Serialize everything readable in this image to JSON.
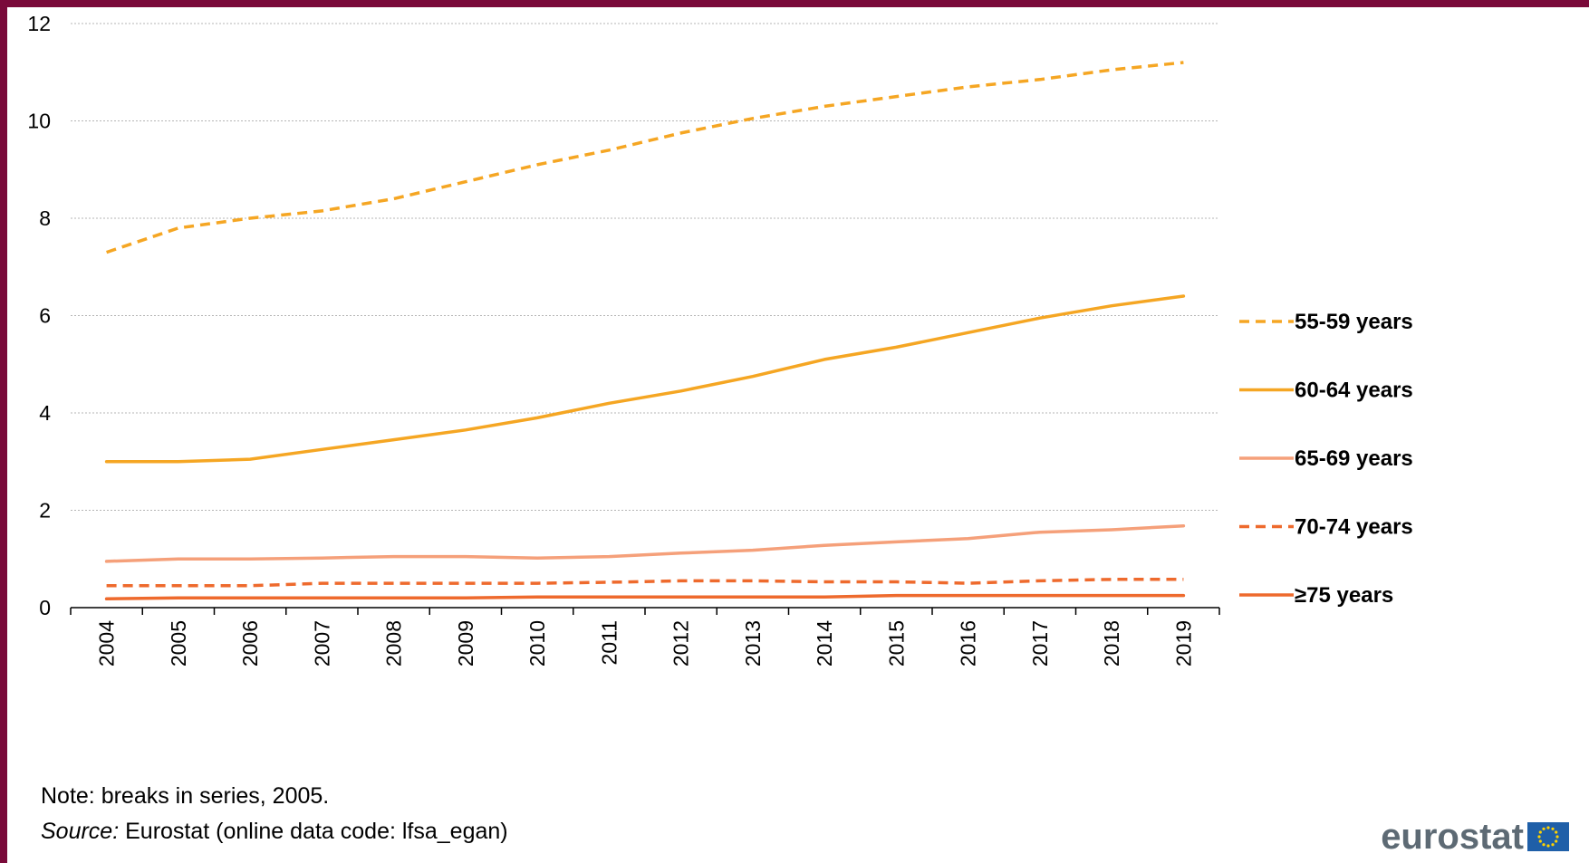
{
  "chart_data": {
    "type": "line",
    "title": "",
    "xlabel": "",
    "ylabel": "",
    "x": [
      "2004",
      "2005",
      "2006",
      "2007",
      "2008",
      "2009",
      "2010",
      "2011",
      "2012",
      "2013",
      "2014",
      "2015",
      "2016",
      "2017",
      "2018",
      "2019"
    ],
    "ylim": [
      0,
      12
    ],
    "yticks": [
      0,
      2,
      4,
      6,
      8,
      10,
      12
    ],
    "grid": true,
    "legend_position": "right",
    "series": [
      {
        "name": "55-59 years",
        "color": "#f5a623",
        "dashed": true,
        "values": [
          7.3,
          7.8,
          8.0,
          8.15,
          8.4,
          8.75,
          9.1,
          9.4,
          9.75,
          10.05,
          10.3,
          10.5,
          10.7,
          10.85,
          11.05,
          11.2
        ]
      },
      {
        "name": "60-64 years",
        "color": "#f5a623",
        "dashed": false,
        "values": [
          3.0,
          3.0,
          3.05,
          3.25,
          3.45,
          3.65,
          3.9,
          4.2,
          4.45,
          4.75,
          5.1,
          5.35,
          5.65,
          5.95,
          6.2,
          6.4
        ]
      },
      {
        "name": "65-69 years",
        "color": "#f5a07a",
        "dashed": false,
        "values": [
          0.95,
          1.0,
          1.0,
          1.02,
          1.05,
          1.05,
          1.02,
          1.05,
          1.12,
          1.18,
          1.28,
          1.35,
          1.42,
          1.55,
          1.6,
          1.68
        ]
      },
      {
        "name": "70-74 years",
        "color": "#ee6a2d",
        "dashed": true,
        "values": [
          0.45,
          0.45,
          0.45,
          0.5,
          0.5,
          0.5,
          0.5,
          0.52,
          0.55,
          0.55,
          0.53,
          0.53,
          0.5,
          0.55,
          0.58,
          0.58
        ]
      },
      {
        "name": "≥75 years",
        "color": "#ee6a2d",
        "dashed": false,
        "values": [
          0.18,
          0.2,
          0.2,
          0.2,
          0.2,
          0.2,
          0.22,
          0.22,
          0.22,
          0.22,
          0.22,
          0.25,
          0.25,
          0.25,
          0.25,
          0.25
        ]
      }
    ]
  },
  "footer": {
    "note": "Note: breaks in series, 2005.",
    "source_label": "Source:",
    "source_text": " Eurostat (online data code: lfsa_egan)"
  },
  "logo": {
    "text": "eurostat",
    "flag_color": "#1f5fa8",
    "star_color": "#ffd200"
  }
}
